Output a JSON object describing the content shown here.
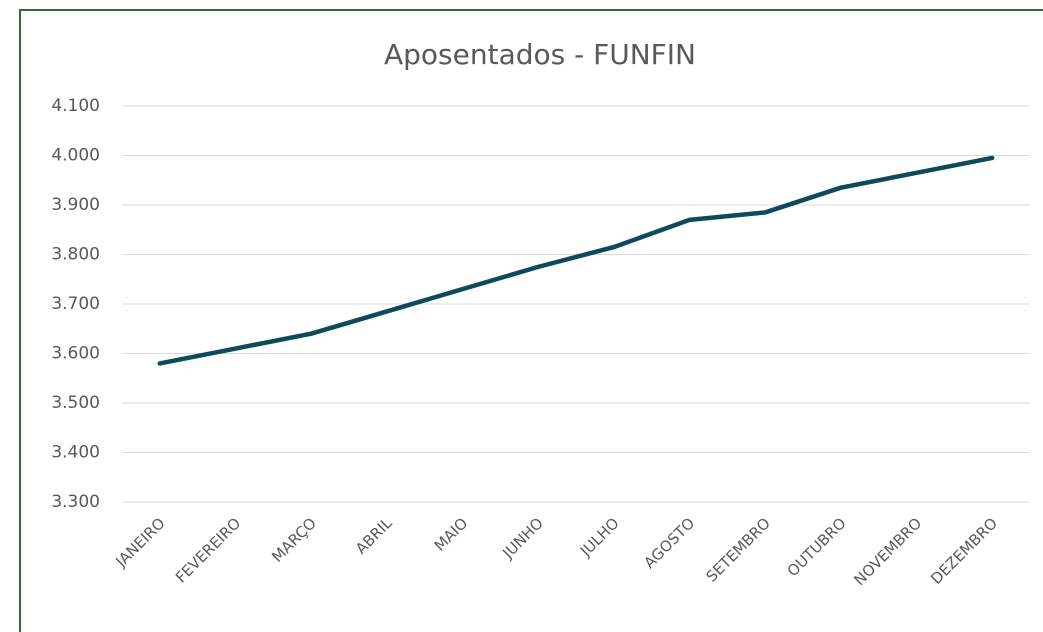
{
  "chart_data": {
    "type": "line",
    "title": "Aposentados - FUNFIN",
    "categories": [
      "JANEIRO",
      "FEVEREIRO",
      "MARÇO",
      "ABRIL",
      "MAIO",
      "JUNHO",
      "JULHO",
      "AGOSTO",
      "SETEMBRO",
      "OUTUBRO",
      "NOVEMBRO",
      "DEZEMBRO"
    ],
    "values": [
      3580,
      3610,
      3640,
      3685,
      3730,
      3775,
      3815,
      3870,
      3885,
      3935,
      3965,
      3995
    ],
    "color": "#0f4a5a",
    "ylim": [
      3300,
      4100
    ],
    "yticks": [
      {
        "value": 3300,
        "label": "3.300"
      },
      {
        "value": 3400,
        "label": "3.400"
      },
      {
        "value": 3500,
        "label": "3.500"
      },
      {
        "value": 3600,
        "label": "3.600"
      },
      {
        "value": 3700,
        "label": "3.700"
      },
      {
        "value": 3800,
        "label": "3.800"
      },
      {
        "value": 3900,
        "label": "3.900"
      },
      {
        "value": 4000,
        "label": "4.000"
      },
      {
        "value": 4100,
        "label": "4.100"
      }
    ],
    "grid": true
  }
}
